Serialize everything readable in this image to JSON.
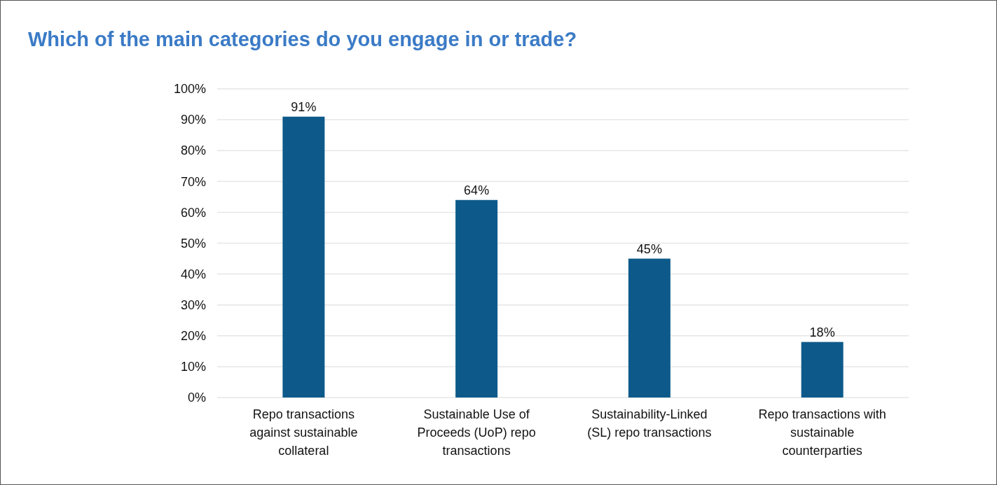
{
  "chart_data": {
    "type": "bar",
    "title": "Which of the main categories do you engage in or trade?",
    "categories": [
      "Repo transactions against sustainable collateral",
      "Sustainable Use of Proceeds (UoP) repo transactions",
      "Sustainability-Linked (SL) repo transactions",
      "Repo transactions with sustainable counterparties"
    ],
    "values": [
      91,
      64,
      45,
      18
    ],
    "value_labels": [
      "91%",
      "64%",
      "45%",
      "18%"
    ],
    "color": "#0d5a8a",
    "grid": "y",
    "ylim": [
      0,
      100
    ],
    "yticks": [
      {
        "value": 0,
        "label": "0%"
      },
      {
        "value": 10,
        "label": "10%"
      },
      {
        "value": 20,
        "label": "20%"
      },
      {
        "value": 30,
        "label": "30%"
      },
      {
        "value": 40,
        "label": "40%"
      },
      {
        "value": 50,
        "label": "50%"
      },
      {
        "value": 60,
        "label": "60%"
      },
      {
        "value": 70,
        "label": "70%"
      },
      {
        "value": 80,
        "label": "80%"
      },
      {
        "value": 90,
        "label": "90%"
      },
      {
        "value": 100,
        "label": "100%"
      }
    ]
  }
}
